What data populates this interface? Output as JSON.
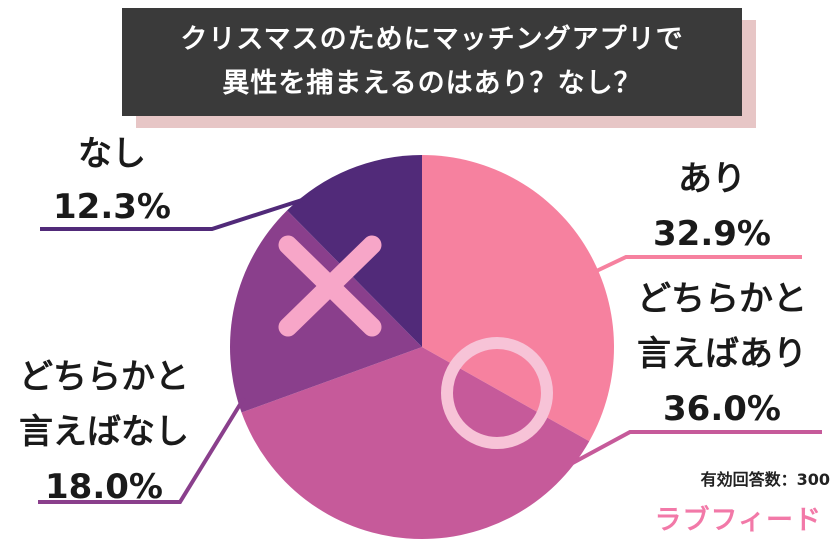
{
  "title": {
    "line1": "クリスマスのためにマッチングアプリで",
    "line2": "異性を捕まえるのはあり？なし？"
  },
  "footer": {
    "respondents": "有効回答数：300",
    "brand": "ラブフィード"
  },
  "colors": {
    "ari": "#f6819f",
    "dochiraka_ari": "#c65a9a",
    "dochiraka_nashi": "#8a3f8c",
    "nashi": "#512a79",
    "title_bg": "#3a3a3a",
    "title_shadow": "#e7c6c6",
    "brand": "#f279a8"
  },
  "icons": {
    "ari_mark": "circle-icon",
    "nashi_mark": "cross-icon"
  },
  "chart_data": {
    "type": "pie",
    "title": "クリスマスのためにマッチングアプリで異性を捕まえるのはあり？なし？",
    "start": "12 o'clock, clockwise",
    "slices": [
      {
        "label_lines": [
          "あり"
        ],
        "value": 32.9,
        "value_label": "32.9%",
        "color": "#f6819f"
      },
      {
        "label_lines": [
          "どちらかと",
          "言えばあり"
        ],
        "value": 36.0,
        "value_label": "36.0%",
        "color": "#c65a9a"
      },
      {
        "label_lines": [
          "どちらかと",
          "言えばなし"
        ],
        "value": 18.0,
        "value_label": "18.0%",
        "color": "#8a3f8c"
      },
      {
        "label_lines": [
          "なし"
        ],
        "value": 12.3,
        "value_label": "12.3%",
        "color": "#512a79"
      }
    ],
    "n": 300
  }
}
